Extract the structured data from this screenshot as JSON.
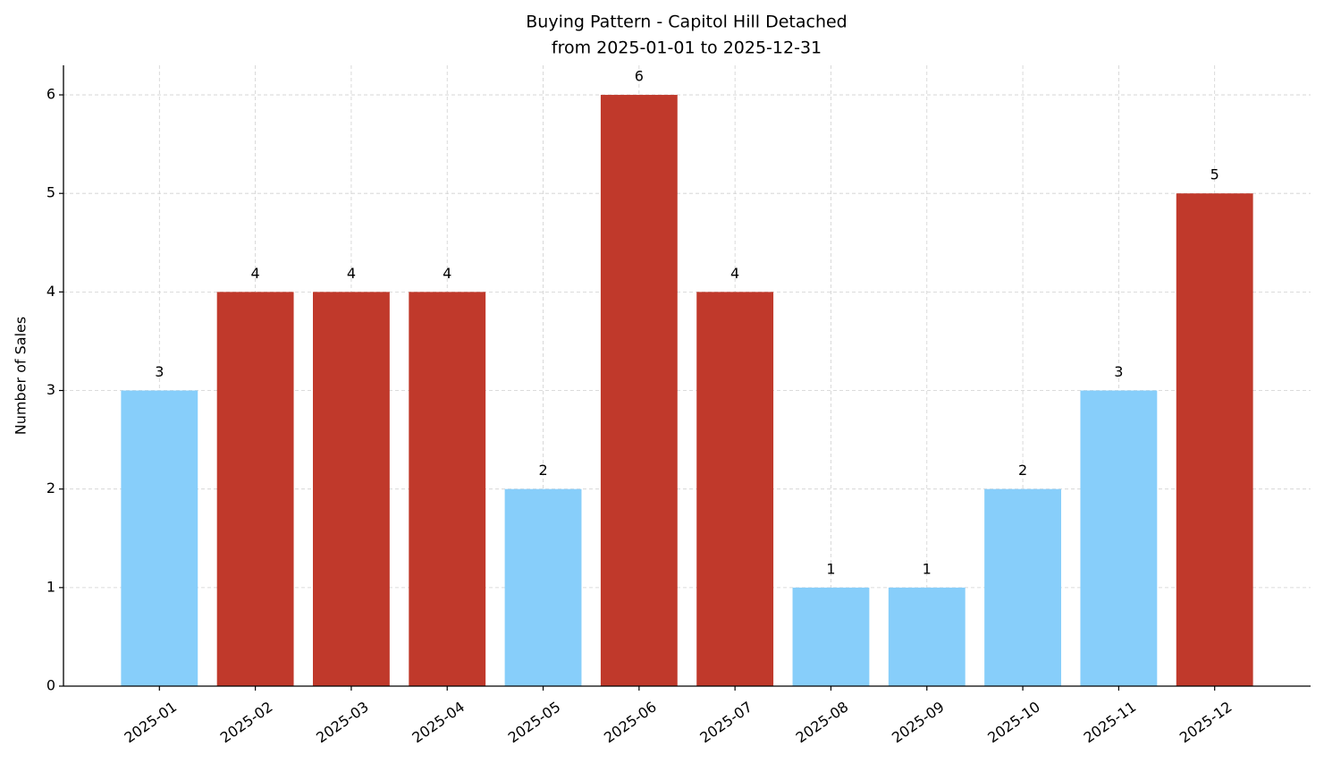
{
  "chart_data": {
    "type": "bar",
    "title": "Buying Pattern - Capitol Hill Detached",
    "subtitle": "from 2025-01-01 to 2025-12-31",
    "y_label": "Number of Sales",
    "categories": [
      "2025-01",
      "2025-02",
      "2025-03",
      "2025-04",
      "2025-05",
      "2025-06",
      "2025-07",
      "2025-08",
      "2025-09",
      "2025-10",
      "2025-11",
      "2025-12"
    ],
    "values": [
      3,
      4,
      4,
      4,
      2,
      6,
      4,
      1,
      1,
      2,
      3,
      5
    ],
    "colors": [
      "#87cefa",
      "#c0392b",
      "#c0392b",
      "#c0392b",
      "#87cefa",
      "#c0392b",
      "#c0392b",
      "#87cefa",
      "#87cefa",
      "#87cefa",
      "#87cefa",
      "#c0392b"
    ],
    "ylim": [
      0,
      6.3
    ],
    "yticks": [
      0,
      1,
      2,
      3,
      4,
      5,
      6
    ],
    "grid": true
  }
}
